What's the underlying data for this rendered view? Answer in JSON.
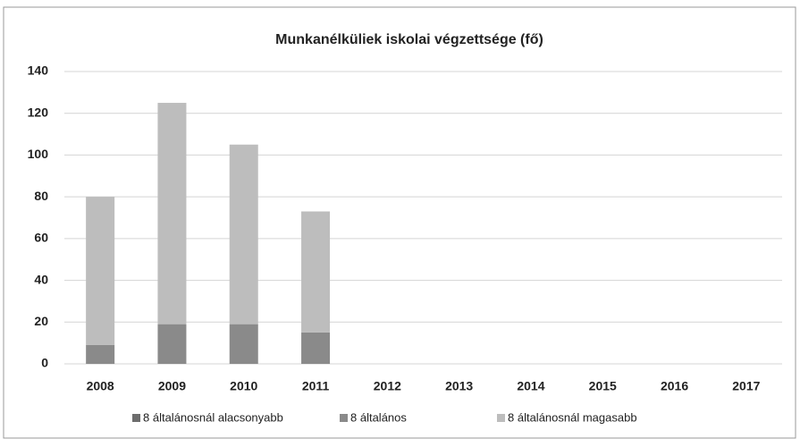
{
  "chart_data": {
    "type": "stacked_bar",
    "title": "Munkanélküliek iskolai végzettsége (fő)",
    "categories": [
      "2008",
      "2009",
      "2010",
      "2011",
      "2012",
      "2013",
      "2014",
      "2015",
      "2016",
      "2017"
    ],
    "series": [
      {
        "name": "8 általánosnál alacsonyabb",
        "color": "#6d6d6d",
        "values": [
          0,
          0,
          0,
          0,
          null,
          null,
          null,
          null,
          null,
          null
        ]
      },
      {
        "name": "8 általános",
        "color": "#8a8a8a",
        "values": [
          9,
          19,
          19,
          15,
          null,
          null,
          null,
          null,
          null,
          null
        ]
      },
      {
        "name": "8 általánosnál magasabb",
        "color": "#bdbdbd",
        "values": [
          71,
          106,
          86,
          58,
          null,
          null,
          null,
          null,
          null,
          null
        ]
      }
    ],
    "ylim": [
      0,
      140
    ],
    "yticks": [
      0,
      20,
      40,
      60,
      80,
      100,
      120,
      140
    ],
    "grid": true,
    "legend": "bottom"
  }
}
